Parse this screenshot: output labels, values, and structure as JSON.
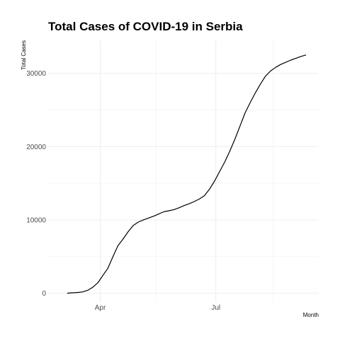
{
  "chart_data": {
    "type": "line",
    "title": "Total Cases of COVID-19 in Serbia",
    "xlabel": "Month",
    "ylabel": "Total Cases",
    "x_ticks": [
      {
        "date": "2020-04-01",
        "label": "Apr"
      },
      {
        "date": "2020-07-01",
        "label": "Jul"
      }
    ],
    "x_minor_ticks": [
      "2020-05-15",
      "2020-08-15"
    ],
    "xlim": [
      "2020-02-20",
      "2020-09-20"
    ],
    "y_ticks": [
      0,
      10000,
      20000,
      30000
    ],
    "y_minor_ticks": [
      5000,
      15000,
      25000
    ],
    "ylim": [
      -1200,
      34500
    ],
    "grid": true,
    "series": [
      {
        "x": [
          "2020-03-06",
          "2020-03-10",
          "2020-03-14",
          "2020-03-18",
          "2020-03-22",
          "2020-03-26",
          "2020-03-30",
          "2020-04-03",
          "2020-04-07",
          "2020-04-11",
          "2020-04-15",
          "2020-04-19",
          "2020-04-23",
          "2020-04-27",
          "2020-05-01",
          "2020-05-05",
          "2020-05-09",
          "2020-05-13",
          "2020-05-17",
          "2020-05-21",
          "2020-05-25",
          "2020-05-29",
          "2020-06-02",
          "2020-06-06",
          "2020-06-10",
          "2020-06-14",
          "2020-06-18",
          "2020-06-22",
          "2020-06-26",
          "2020-06-30",
          "2020-07-04",
          "2020-07-08",
          "2020-07-12",
          "2020-07-16",
          "2020-07-20",
          "2020-07-24",
          "2020-07-28",
          "2020-08-01",
          "2020-08-05",
          "2020-08-09",
          "2020-08-13",
          "2020-08-17",
          "2020-08-21",
          "2020-08-25",
          "2020-08-29",
          "2020-09-02",
          "2020-09-06",
          "2020-09-10"
        ],
        "y": [
          1,
          50,
          90,
          170,
          380,
          800,
          1400,
          2400,
          3400,
          5000,
          6500,
          7400,
          8400,
          9250,
          9700,
          10000,
          10250,
          10500,
          10800,
          11100,
          11250,
          11400,
          11650,
          11950,
          12200,
          12500,
          12850,
          13300,
          14200,
          15300,
          16600,
          17900,
          19400,
          21000,
          22800,
          24600,
          26000,
          27300,
          28500,
          29600,
          30300,
          30800,
          31200,
          31500,
          31800,
          32050,
          32300,
          32500
        ]
      }
    ]
  }
}
